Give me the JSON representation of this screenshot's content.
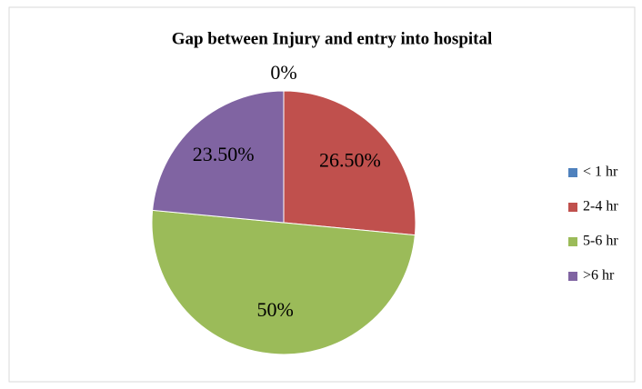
{
  "chart_data": {
    "type": "pie",
    "title": "Gap between Injury and entry into hospital",
    "categories": [
      "< 1 hr",
      "2-4 hr",
      "5-6 hr",
      ">6 hr"
    ],
    "values": [
      0,
      26.5,
      50,
      23.5
    ],
    "value_labels": [
      "0%",
      "26.50%",
      "50%",
      "23.50%"
    ],
    "colors": [
      "#4f81bd",
      "#c0504d",
      "#9bbb59",
      "#8064a2"
    ],
    "legend": "right"
  }
}
